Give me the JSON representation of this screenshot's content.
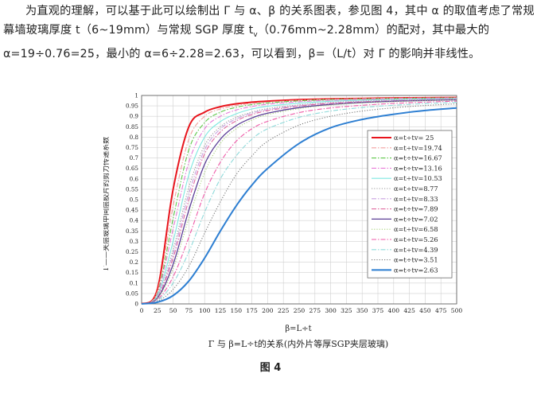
{
  "text": {
    "p1": "为直观的理解，可以基于此可以绘制出 Γ 与 α、β 的关系图表，参见图 4，其中 α 的取值考虑了常规幕墙玻璃厚度 t（6~19mm）与常规 SGP 厚度 t",
    "p1_sub": "v",
    "p2": "（0.76mm~2.28mm）的配对，其中最大的 α=19÷0.76=25，最小的 α=6÷2.28=2.63，可以看到，β=（L/t）对 Γ 的影响并非线性。"
  },
  "figure": {
    "number_label": "图 4"
  },
  "chart_data": {
    "type": "line",
    "title": "Γ 与 β=L÷t的关系(内外片等厚SGP夹层玻璃)",
    "xlabel": "β=L÷t",
    "ylabel": "Γ——夹层玻璃中间层胶片的剪力传递系数",
    "xlim": [
      0,
      500
    ],
    "ylim": [
      0,
      1
    ],
    "x_ticks": [
      0,
      25,
      50,
      75,
      100,
      125,
      150,
      175,
      200,
      225,
      250,
      275,
      300,
      325,
      350,
      375,
      400,
      425,
      450,
      475,
      500
    ],
    "y_ticks": [
      0,
      0.05,
      0.1,
      0.15,
      0.2,
      0.25,
      0.3,
      0.35,
      0.4,
      0.45,
      0.5,
      0.55,
      0.6,
      0.65,
      0.7,
      0.75,
      0.8,
      0.85,
      0.9,
      0.95,
      1
    ],
    "y_tick_labels": [
      "0",
      "0.05",
      "0.1",
      "0.15",
      "0.2",
      "0.25",
      "0.3",
      "0.35",
      "0.4",
      "0.45",
      "0.5",
      "0.55",
      "0.6",
      "0.65",
      "0.7",
      "0.75",
      "0.8",
      "0.85",
      "0.9",
      "0.95",
      "1"
    ],
    "grid": true,
    "legend_position": "right",
    "x": [
      0,
      25,
      50,
      75,
      100,
      125,
      150,
      175,
      200,
      250,
      300,
      350,
      400,
      450,
      500
    ],
    "series": [
      {
        "name": "α=t÷tv= 25",
        "color": "#e8141c",
        "dash": "solid",
        "width": 2.0,
        "values": [
          0,
          0.07,
          0.55,
          0.85,
          0.92,
          0.946,
          0.96,
          0.968,
          0.973,
          0.98,
          0.984,
          0.986,
          0.988,
          0.989,
          0.99
        ]
      },
      {
        "name": "α=t÷tv=19.74",
        "color": "#f2a0a0",
        "dash": "dashdot",
        "width": 1.1,
        "values": [
          0,
          0.06,
          0.47,
          0.79,
          0.9,
          0.935,
          0.952,
          0.962,
          0.968,
          0.977,
          0.982,
          0.985,
          0.987,
          0.988,
          0.989
        ]
      },
      {
        "name": "α=t÷tv=16.67",
        "color": "#5ec84a",
        "dash": "dashdot",
        "width": 1.1,
        "values": [
          0,
          0.05,
          0.41,
          0.74,
          0.87,
          0.92,
          0.943,
          0.956,
          0.964,
          0.974,
          0.98,
          0.983,
          0.985,
          0.987,
          0.988
        ]
      },
      {
        "name": "α=t÷tv=13.16",
        "color": "#e87ad8",
        "dash": "dashdot",
        "width": 1.1,
        "values": [
          0,
          0.045,
          0.36,
          0.68,
          0.84,
          0.9,
          0.93,
          0.947,
          0.958,
          0.97,
          0.977,
          0.981,
          0.984,
          0.986,
          0.987
        ]
      },
      {
        "name": "α=t÷tv=10.53",
        "color": "#7ee8e0",
        "dash": "solid",
        "width": 1.1,
        "values": [
          0,
          0.04,
          0.3,
          0.62,
          0.8,
          0.875,
          0.912,
          0.935,
          0.948,
          0.963,
          0.972,
          0.977,
          0.981,
          0.983,
          0.985
        ]
      },
      {
        "name": "α=t÷tv=8.77",
        "color": "#9a9a9a",
        "dash": "dot",
        "width": 1.1,
        "values": [
          0,
          0.035,
          0.26,
          0.56,
          0.76,
          0.85,
          0.895,
          0.92,
          0.937,
          0.955,
          0.966,
          0.973,
          0.977,
          0.98,
          0.983
        ]
      },
      {
        "name": "α=t÷tv=8.33",
        "color": "#c8a0e0",
        "dash": "dashdot",
        "width": 1.1,
        "values": [
          0,
          0.032,
          0.24,
          0.53,
          0.74,
          0.84,
          0.887,
          0.915,
          0.932,
          0.952,
          0.964,
          0.971,
          0.976,
          0.979,
          0.982
        ]
      },
      {
        "name": "α=t÷tv=7.89",
        "color": "#e06aa0",
        "dash": "dashdot",
        "width": 1.1,
        "values": [
          0,
          0.03,
          0.22,
          0.5,
          0.72,
          0.825,
          0.878,
          0.908,
          0.927,
          0.949,
          0.962,
          0.969,
          0.974,
          0.978,
          0.981
        ]
      },
      {
        "name": "α=t÷tv=7.02",
        "color": "#5a3d96",
        "dash": "solid",
        "width": 1.3,
        "values": [
          0,
          0.027,
          0.19,
          0.45,
          0.67,
          0.79,
          0.855,
          0.892,
          0.915,
          0.942,
          0.957,
          0.966,
          0.972,
          0.976,
          0.979
        ]
      },
      {
        "name": "α=t÷tv=6.58",
        "color": "#a8d27a",
        "dash": "dot",
        "width": 1.1,
        "values": [
          0,
          0.025,
          0.17,
          0.41,
          0.63,
          0.77,
          0.84,
          0.882,
          0.908,
          0.937,
          0.954,
          0.964,
          0.97,
          0.975,
          0.978
        ]
      },
      {
        "name": "α=t÷tv=5.26",
        "color": "#ef5aa8",
        "dash": "dashdot",
        "width": 1.1,
        "values": [
          0,
          0.02,
          0.13,
          0.32,
          0.53,
          0.68,
          0.78,
          0.84,
          0.876,
          0.918,
          0.94,
          0.953,
          0.962,
          0.968,
          0.973
        ]
      },
      {
        "name": "α=t÷tv=4.39",
        "color": "#8fdada",
        "dash": "dashdot",
        "width": 1.1,
        "values": [
          0,
          0.016,
          0.1,
          0.25,
          0.44,
          0.6,
          0.71,
          0.79,
          0.84,
          0.895,
          0.925,
          0.942,
          0.953,
          0.961,
          0.967
        ]
      },
      {
        "name": "α=t÷tv=3.51",
        "color": "#7a7a7a",
        "dash": "dot",
        "width": 1.1,
        "values": [
          0,
          0.012,
          0.07,
          0.18,
          0.34,
          0.49,
          0.62,
          0.71,
          0.78,
          0.858,
          0.9,
          0.925,
          0.941,
          0.952,
          0.96
        ]
      },
      {
        "name": "α=t÷tv=2.63",
        "color": "#2e7fd2",
        "dash": "solid",
        "width": 2.0,
        "values": [
          0,
          0.008,
          0.04,
          0.11,
          0.22,
          0.35,
          0.47,
          0.57,
          0.65,
          0.77,
          0.845,
          0.885,
          0.91,
          0.928,
          0.94
        ]
      }
    ]
  }
}
